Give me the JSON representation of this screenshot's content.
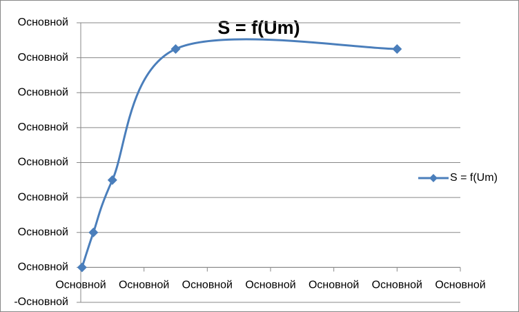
{
  "chart_data": {
    "type": "line",
    "title": "S = f(Um)",
    "x": [
      0.02,
      0.2,
      0.5,
      1.5,
      5
    ],
    "series": [
      {
        "name": "S = f(Um)",
        "color": "#4a7ebb",
        "values": [
          0,
          1,
          2.5,
          6.25,
          6.25
        ]
      }
    ],
    "xlim": [
      0,
      6
    ],
    "ylim": [
      -1,
      7
    ],
    "xticks": [
      {
        "value": 0,
        "label": "Основной"
      },
      {
        "value": 1,
        "label": "Основной"
      },
      {
        "value": 2,
        "label": "Основной"
      },
      {
        "value": 3,
        "label": "Основной"
      },
      {
        "value": 4,
        "label": "Основной"
      },
      {
        "value": 5,
        "label": "Основной"
      },
      {
        "value": 6,
        "label": "Основной"
      }
    ],
    "yticks": [
      {
        "value": -1,
        "label": "-Основной"
      },
      {
        "value": 0,
        "label": "Основной"
      },
      {
        "value": 1,
        "label": "Основной"
      },
      {
        "value": 2,
        "label": "Основной"
      },
      {
        "value": 3,
        "label": "Основной"
      },
      {
        "value": 4,
        "label": "Основной"
      },
      {
        "value": 5,
        "label": "Основной"
      },
      {
        "value": 6,
        "label": "Основной"
      },
      {
        "value": 7,
        "label": "Основной"
      }
    ],
    "grid": true,
    "smooth": true,
    "marker": "diamond",
    "legend": "right"
  }
}
